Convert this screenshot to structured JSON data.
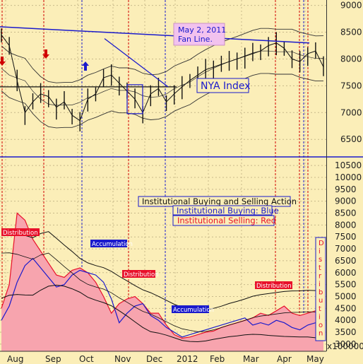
{
  "chart_data": [
    {
      "type": "line",
      "panel": "top",
      "label": "NYA Index",
      "annotation": "May 2, 2011\nFan Line.",
      "y_ticks": [
        6500,
        7000,
        7500,
        8000,
        8500,
        9000
      ],
      "ylim": [
        6200,
        9100
      ],
      "x_labels": [
        "Aug",
        "Sep",
        "Oct",
        "Nov",
        "Dec",
        "2012",
        "Feb",
        "Mar",
        "Apr",
        "May"
      ],
      "grid": true,
      "x": [
        "Jul 25",
        "Aug 1",
        "Aug 8",
        "Aug 15",
        "Aug 22",
        "Aug 29",
        "Sep 5",
        "Sep 12",
        "Sep 19",
        "Sep 26",
        "Oct 3",
        "Oct 10",
        "Oct 17",
        "Oct 24",
        "Oct 31",
        "Nov 7",
        "Nov 14",
        "Nov 21",
        "Nov 28",
        "Dec 5",
        "Dec 12",
        "Dec 19",
        "Dec 26",
        "Jan 2",
        "Jan 9",
        "Jan 16",
        "Jan 23",
        "Jan 30",
        "Feb 6",
        "Feb 13",
        "Feb 20",
        "Feb 27",
        "Mar 5",
        "Mar 12",
        "Mar 19",
        "Mar 26",
        "Apr 2",
        "Apr 9",
        "Apr 16",
        "Apr 23",
        "Apr 30",
        "May 7"
      ],
      "series": [
        {
          "name": "NYA Index",
          "values": [
            8450,
            8250,
            7600,
            7000,
            7200,
            7350,
            7300,
            7100,
            7200,
            6950,
            6850,
            7250,
            7350,
            7650,
            7700,
            7550,
            7400,
            7250,
            7000,
            7350,
            7450,
            7200,
            7350,
            7480,
            7600,
            7700,
            7800,
            7850,
            7900,
            7950,
            8000,
            8050,
            8100,
            8150,
            8250,
            8300,
            8200,
            8000,
            7950,
            8100,
            8150,
            7850
          ]
        }
      ]
    },
    {
      "type": "area",
      "panel": "bottom",
      "y_ticks": [
        3000,
        3500,
        4000,
        4500,
        5000,
        5500,
        6000,
        6500,
        7000,
        7500,
        8000,
        8500,
        9000,
        9500,
        10000,
        10500
      ],
      "ylim": [
        2700,
        10800
      ],
      "unit_label": "x100000",
      "x_labels": [
        "Aug",
        "Sep",
        "Oct",
        "Nov",
        "Dec",
        "2012",
        "Feb",
        "Mar",
        "Apr",
        "May"
      ],
      "legend": [
        "Institutional Buying and Selling Action",
        "Institutional Buying: Blue",
        "Institutional Selling: Red"
      ],
      "annotations": [
        "Distribution",
        "Accumulation",
        "Distribution",
        "Accumulation",
        "Distribution"
      ],
      "side_label": "Distribution",
      "x": [
        "Jul 25",
        "Aug 1",
        "Aug 8",
        "Aug 15",
        "Aug 22",
        "Aug 29",
        "Sep 5",
        "Sep 12",
        "Sep 19",
        "Sep 26",
        "Oct 3",
        "Oct 10",
        "Oct 17",
        "Oct 24",
        "Oct 31",
        "Nov 7",
        "Nov 14",
        "Nov 21",
        "Nov 28",
        "Dec 5",
        "Dec 12",
        "Dec 19",
        "Dec 26",
        "Jan 2",
        "Jan 9",
        "Jan 16",
        "Jan 23",
        "Jan 30",
        "Feb 6",
        "Feb 13",
        "Feb 20",
        "Feb 27",
        "Mar 5",
        "Mar 12",
        "Mar 19",
        "Mar 26",
        "Apr 2",
        "Apr 9",
        "Apr 16",
        "Apr 23",
        "Apr 30",
        "May 7"
      ],
      "series": [
        {
          "name": "Institutional Selling",
          "values": [
            4500,
            5500,
            8500,
            8200,
            7400,
            6900,
            6400,
            5900,
            5800,
            6100,
            6200,
            6000,
            5600,
            5000,
            4300,
            4700,
            4900,
            5000,
            4700,
            4300,
            4300,
            3800,
            3400,
            3250,
            3300,
            3400,
            3500,
            3550,
            3700,
            3800,
            3900,
            4000,
            4100,
            4300,
            4200,
            4400,
            4600,
            4300,
            4200,
            4300,
            4400,
            4300
          ]
        },
        {
          "name": "Institutional Buying",
          "values": [
            4000,
            4600,
            5600,
            6300,
            6600,
            6200,
            5800,
            5400,
            5500,
            5900,
            6100,
            6000,
            5900,
            5600,
            4900,
            3900,
            4300,
            4600,
            4700,
            4200,
            4000,
            3700,
            3500,
            3300,
            3400,
            3500,
            3600,
            3700,
            3800,
            3900,
            4000,
            4100,
            3800,
            3900,
            3800,
            4000,
            3900,
            3700,
            3600,
            3800,
            3900,
            3700
          ]
        }
      ]
    }
  ]
}
